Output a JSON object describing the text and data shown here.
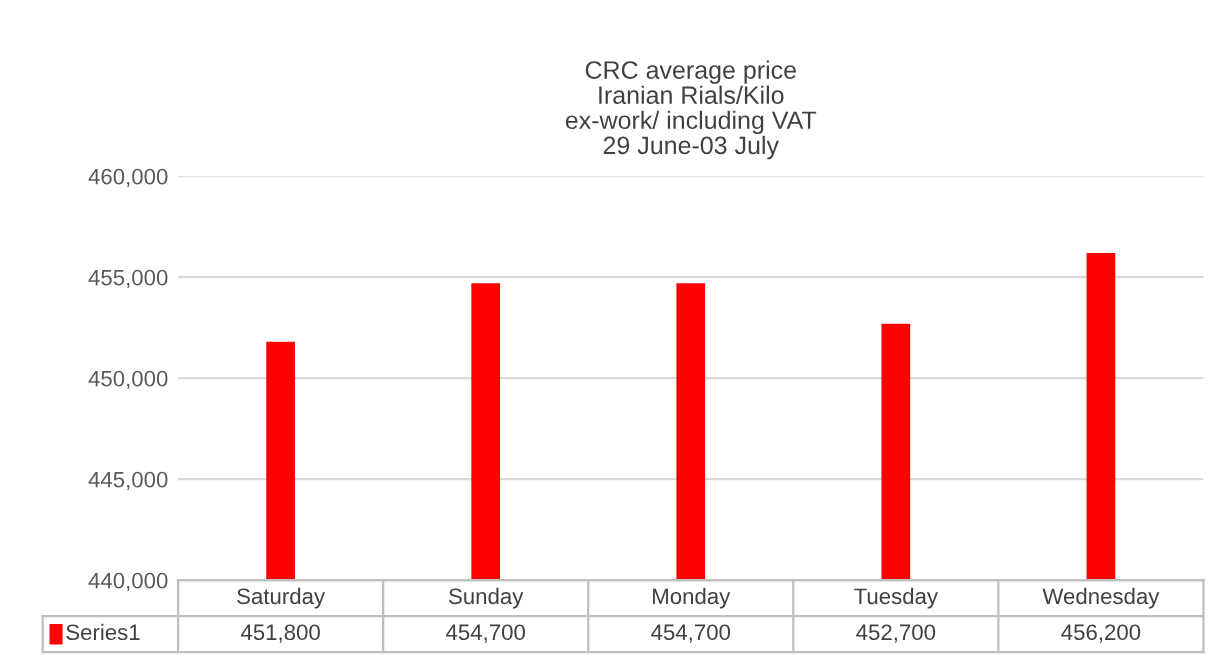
{
  "chart_data": {
    "type": "bar",
    "title": "CRC average price\nIranian Rials/Kilo\nex-work/ including VAT\n29 June-03 July",
    "categories": [
      "Saturday",
      "Sunday",
      "Monday",
      "Tuesday",
      "Wednesday"
    ],
    "series": [
      {
        "name": "Series1",
        "color": "#ff0000",
        "values": [
          451800,
          454700,
          454700,
          452700,
          456200
        ],
        "value_labels": [
          "451,800",
          "454,700",
          "454,700",
          "452,700",
          "456,200"
        ]
      }
    ],
    "ylim": [
      440000,
      460000
    ],
    "yticks": [
      {
        "value": 440000,
        "label": "440,000"
      },
      {
        "value": 445000,
        "label": "445,000"
      },
      {
        "value": 450000,
        "label": "450,000"
      },
      {
        "value": 455000,
        "label": "455,000"
      },
      {
        "value": 460000,
        "label": "460,000"
      }
    ],
    "grid": "y",
    "legend": "bottom"
  }
}
